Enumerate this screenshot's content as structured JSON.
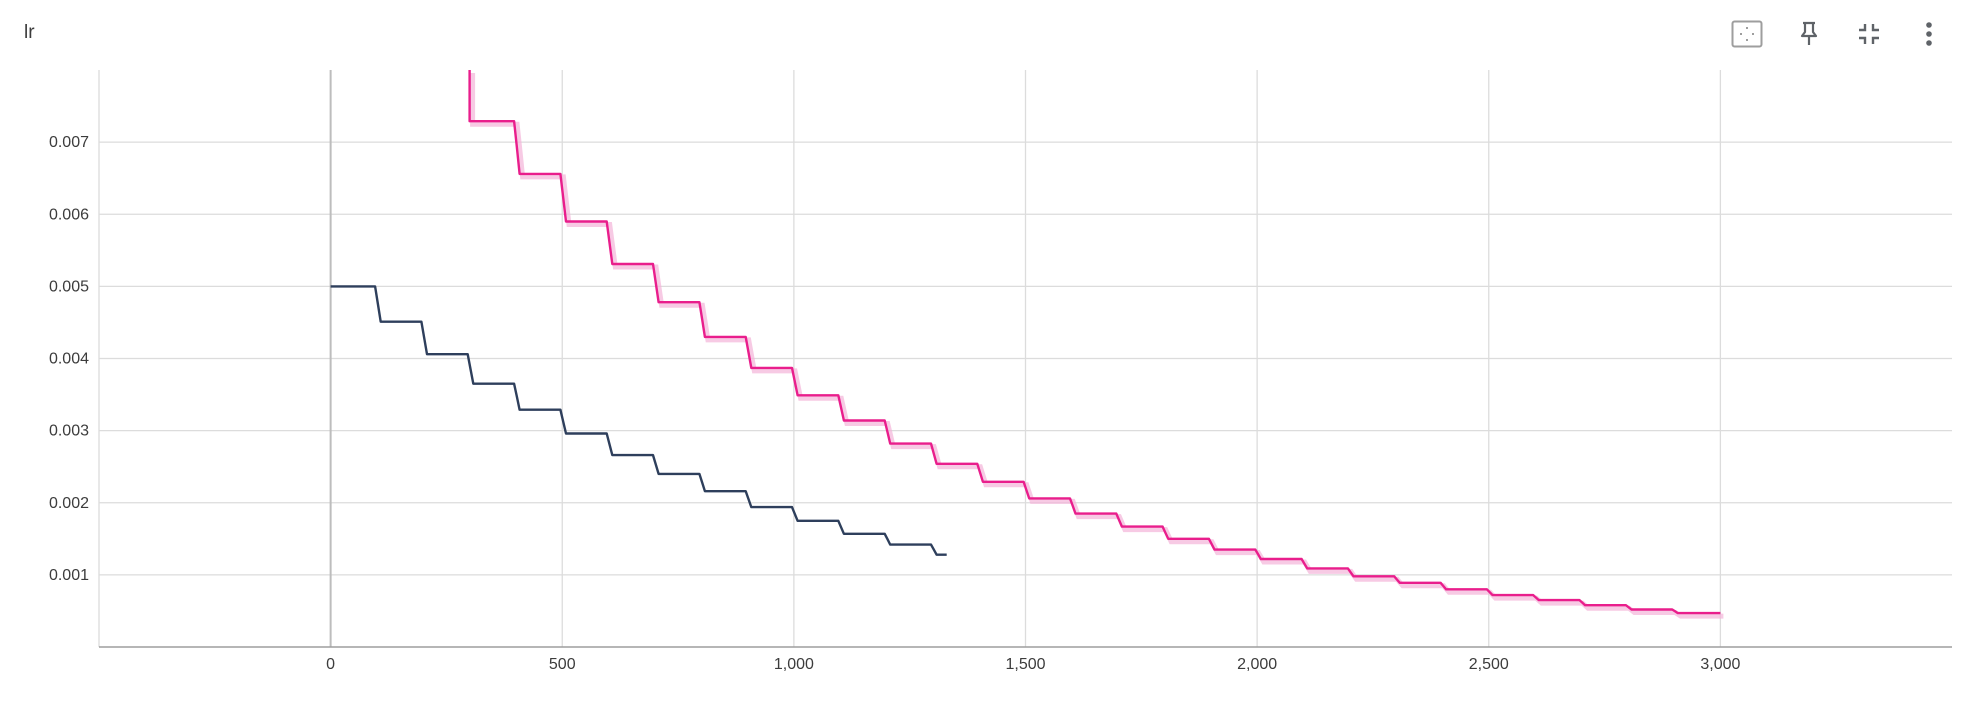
{
  "card": {
    "title": "lr"
  },
  "toolbar": {
    "icons": [
      "fit-to-data-icon",
      "pin-icon",
      "collapse-icon",
      "more-vert-icon"
    ]
  },
  "colors": {
    "series_a": "#2e3f5c",
    "series_b": "#e91e8c",
    "series_b_raw": "#f3b3d8",
    "grid": "#dcdcdc",
    "axis": "#9e9e9e"
  },
  "chart_data": {
    "type": "line",
    "title": "lr",
    "xlabel": "",
    "ylabel": "",
    "xlim": [
      -500,
      3500
    ],
    "ylim": [
      0,
      0.008
    ],
    "x_ticks": [
      0,
      500,
      1000,
      1500,
      2000,
      2500,
      3000
    ],
    "x_tick_labels": [
      "0",
      "500",
      "1,000",
      "1,500",
      "2,000",
      "2,500",
      "3,000"
    ],
    "y_ticks": [
      0.001,
      0.002,
      0.003,
      0.004,
      0.005,
      0.006,
      0.007
    ],
    "y_tick_labels": [
      "0.001",
      "0.002",
      "0.003",
      "0.004",
      "0.005",
      "0.006",
      "0.007"
    ],
    "grid": true,
    "series": [
      {
        "color": "#2e3f5c",
        "step_every": 100,
        "x_start": 0,
        "x_end": 1330,
        "levels": [
          0.005,
          0.00451,
          0.00406,
          0.00365,
          0.00329,
          0.00296,
          0.00266,
          0.0024,
          0.00216,
          0.00194,
          0.00175,
          0.00157,
          0.00142,
          0.00128
        ]
      },
      {
        "color": "#e91e8c",
        "step_every": 100,
        "x_start": 300,
        "x_end": 3000,
        "levels": [
          0.00729,
          0.00656,
          0.0059,
          0.00531,
          0.00478,
          0.0043,
          0.00387,
          0.00349,
          0.00314,
          0.00282,
          0.00254,
          0.00229,
          0.00206,
          0.00185,
          0.00167,
          0.0015,
          0.00135,
          0.00122,
          0.00109,
          0.00098,
          0.00089,
          0.0008,
          0.00072,
          0.00065,
          0.00058,
          0.00052,
          0.00047
        ]
      }
    ]
  }
}
